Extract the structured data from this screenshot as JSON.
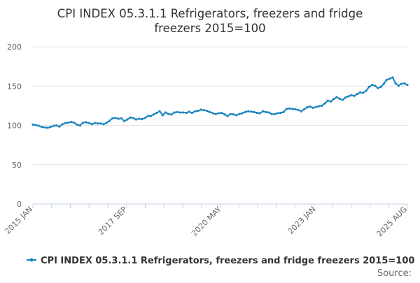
{
  "chart_data": {
    "type": "line",
    "title": "CPI INDEX 05.3.1.1 Refrigerators, freezers and fridge freezers 2015=100",
    "title_lines": [
      "CPI INDEX 05.3.1.1 Refrigerators, freezers and fridge",
      "freezers 2015=100"
    ],
    "xlabel": "",
    "ylabel": "",
    "ylim": [
      0,
      200
    ],
    "yticks": [
      0,
      50,
      100,
      150,
      200
    ],
    "x_tick_labels": [
      "2015 JAN",
      "2017 SEP",
      "2020 MAY",
      "2023 JAN",
      "2025 AUG"
    ],
    "x_tick_index": [
      0,
      32,
      64,
      96,
      127
    ],
    "grid": true,
    "legend_position": "bottom",
    "series_color": "#1a85c1",
    "series": [
      {
        "name": "CPI INDEX 05.3.1.1 Refrigerators, freezers and fridge freezers 2015=100",
        "values": [
          101.0,
          100.5,
          99.5,
          98.0,
          97.5,
          97.0,
          98.0,
          99.5,
          100.0,
          98.5,
          101.5,
          103.0,
          103.5,
          104.5,
          103.5,
          101.0,
          100.0,
          103.5,
          104.0,
          103.0,
          101.5,
          103.0,
          102.5,
          102.5,
          101.5,
          103.5,
          106.0,
          109.0,
          109.5,
          108.5,
          109.0,
          105.5,
          107.5,
          110.0,
          109.5,
          107.5,
          108.5,
          108.0,
          109.5,
          112.0,
          112.0,
          114.0,
          116.0,
          118.0,
          113.0,
          116.5,
          114.5,
          114.0,
          116.5,
          117.0,
          116.5,
          116.5,
          116.0,
          117.5,
          116.0,
          118.0,
          118.5,
          120.0,
          119.5,
          118.5,
          117.0,
          115.5,
          114.5,
          115.5,
          116.0,
          114.0,
          112.0,
          114.5,
          114.0,
          113.0,
          114.5,
          115.5,
          117.0,
          118.0,
          117.5,
          117.0,
          116.0,
          115.5,
          118.0,
          117.0,
          116.5,
          114.5,
          114.5,
          115.5,
          116.0,
          117.0,
          121.0,
          121.5,
          121.0,
          120.5,
          119.5,
          118.0,
          120.5,
          123.0,
          124.0,
          122.5,
          123.5,
          124.5,
          125.0,
          128.0,
          131.5,
          130.5,
          133.5,
          136.0,
          134.0,
          132.5,
          135.5,
          137.0,
          138.5,
          137.5,
          140.0,
          142.0,
          141.5,
          144.0,
          149.0,
          151.5,
          150.5,
          147.5,
          149.0,
          153.0,
          158.0,
          159.5,
          161.0,
          153.5,
          150.5,
          153.0,
          153.5,
          151.5
        ]
      }
    ]
  },
  "legend": {
    "label": "CPI INDEX 05.3.1.1 Refrigerators, freezers and fridge freezers 2015=100"
  },
  "source": {
    "label": "Source:"
  }
}
